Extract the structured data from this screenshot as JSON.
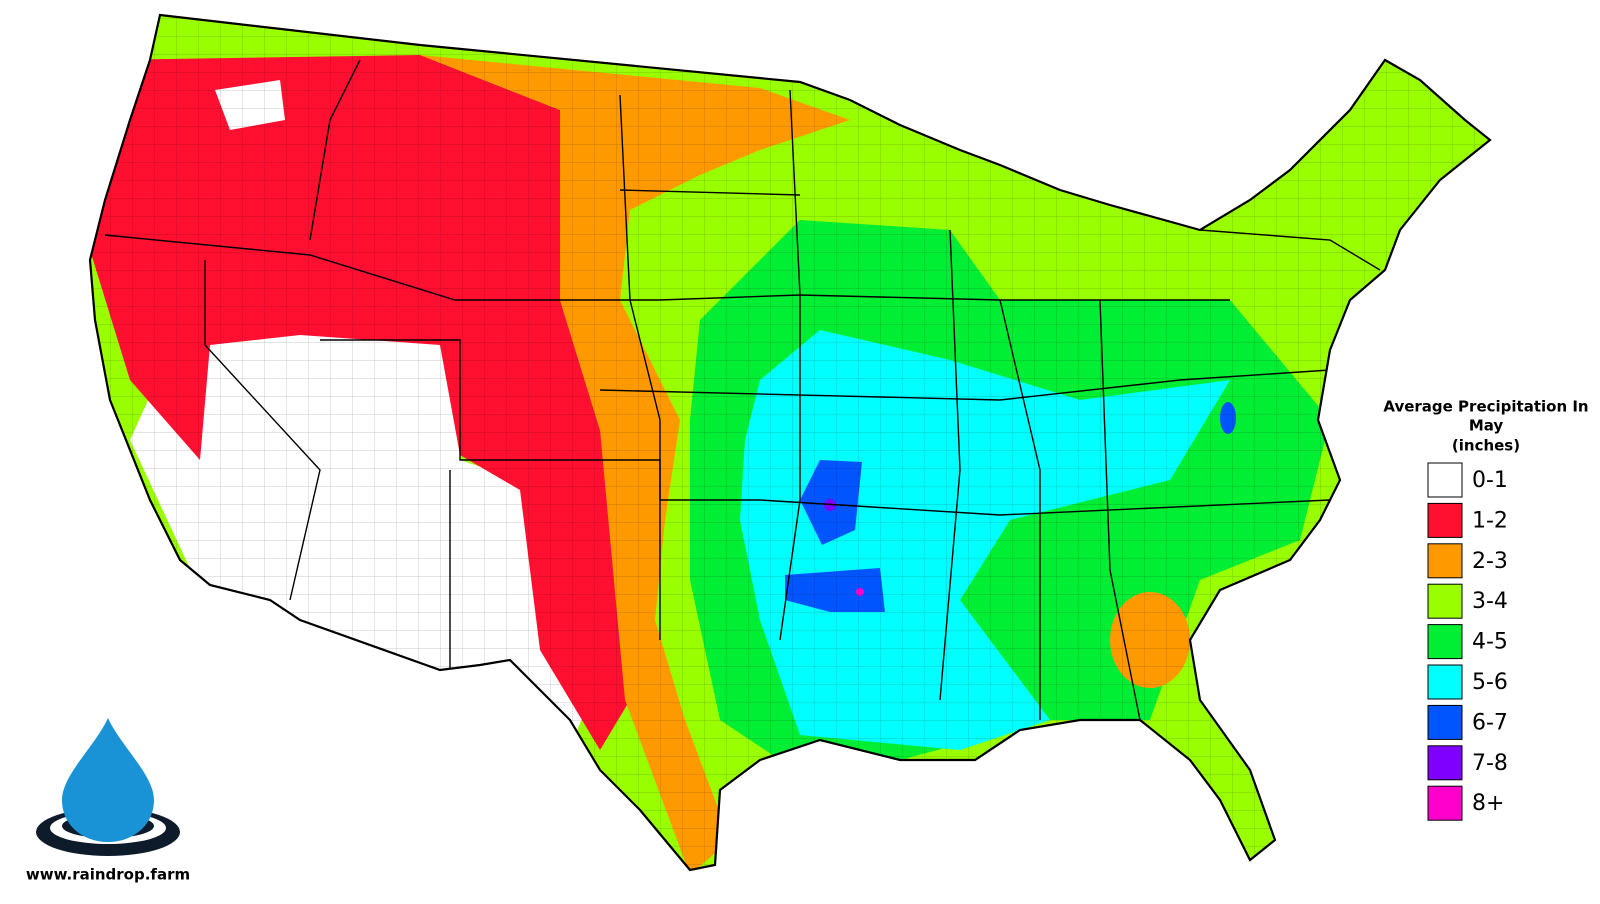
{
  "legend": {
    "title_lines": [
      "Average Precipitation In",
      "May",
      "(inches)"
    ],
    "items": [
      {
        "label": "0-1",
        "color": "#ffffff"
      },
      {
        "label": "1-2",
        "color": "#ff1030"
      },
      {
        "label": "2-3",
        "color": "#ff9900"
      },
      {
        "label": "3-4",
        "color": "#99ff00"
      },
      {
        "label": "4-5",
        "color": "#00ee33"
      },
      {
        "label": "5-6",
        "color": "#00ffff"
      },
      {
        "label": "6-7",
        "color": "#0055ff"
      },
      {
        "label": "7-8",
        "color": "#7f00ff"
      },
      {
        "label": "8+",
        "color": "#ff00cc"
      }
    ]
  },
  "footer": {
    "website": "www.raindrop.farm"
  }
}
